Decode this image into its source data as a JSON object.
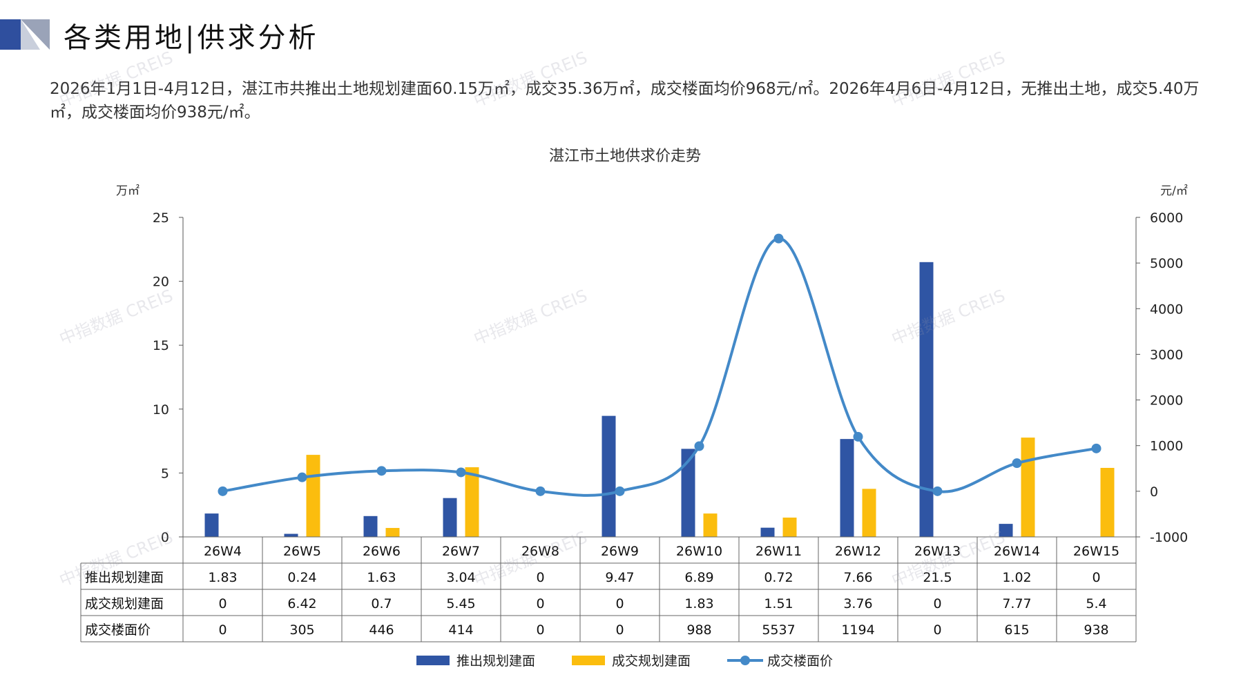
{
  "header": {
    "title": "各类用地|供求分析"
  },
  "summary": "2026年1月1日-4月12日，湛江市共推出土地规划建面60.15万㎡，成交35.36万㎡，成交楼面均价968元/㎡。2026年4月6日-4月12日，无推出土地，成交5.40万㎡，成交楼面均价938元/㎡。",
  "watermark": "中指数据 CREIS",
  "colors": {
    "supply": "#2f55a4",
    "deal": "#fbbd0e",
    "price": "#4389c8"
  },
  "chart_data": {
    "type": "bar",
    "title": "湛江市土地供求价走势",
    "left_unit": "万㎡",
    "right_unit": "元/㎡",
    "categories": [
      "26W4",
      "26W5",
      "26W6",
      "26W7",
      "26W8",
      "26W9",
      "26W10",
      "26W11",
      "26W12",
      "26W13",
      "26W14",
      "26W15"
    ],
    "ylim_left": [
      0,
      25
    ],
    "ylim_right": [
      -1000,
      6000
    ],
    "yticks_left": [
      0,
      5,
      10,
      15,
      20,
      25
    ],
    "yticks_right": [
      -1000,
      0,
      1000,
      2000,
      3000,
      4000,
      5000,
      6000
    ],
    "legend_position": "bottom",
    "series": [
      {
        "name": "推出规划建面",
        "type": "bar",
        "axis": "left",
        "values": [
          1.83,
          0.24,
          1.63,
          3.04,
          0,
          9.47,
          6.89,
          0.72,
          7.66,
          21.5,
          1.02,
          0
        ],
        "labels": [
          "1.83",
          "0.24",
          "1.63",
          "3.04",
          "0",
          "9.47",
          "6.89",
          "0.72",
          "7.66",
          "21.5",
          "1.02",
          "0"
        ]
      },
      {
        "name": "成交规划建面",
        "type": "bar",
        "axis": "left",
        "values": [
          0,
          6.42,
          0.7,
          5.45,
          0,
          0,
          1.83,
          1.51,
          3.76,
          0,
          7.77,
          5.4
        ],
        "labels": [
          "0",
          "6.42",
          "0.7",
          "5.45",
          "0",
          "0",
          "1.83",
          "1.51",
          "3.76",
          "0",
          "7.77",
          "5.4"
        ]
      },
      {
        "name": "成交楼面价",
        "type": "line",
        "axis": "right",
        "values": [
          0,
          305,
          446,
          414,
          0,
          0,
          988,
          5537,
          1194,
          0,
          615,
          938
        ],
        "labels": [
          "0",
          "305",
          "446",
          "414",
          "0",
          "0",
          "988",
          "5537",
          "1194",
          "0",
          "615",
          "938"
        ]
      }
    ]
  }
}
